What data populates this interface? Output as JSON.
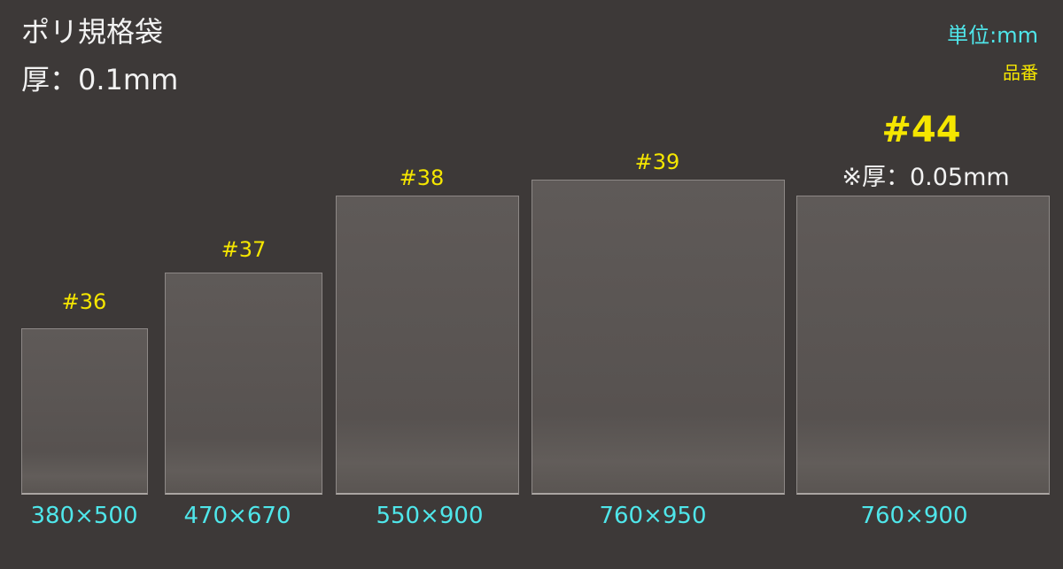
{
  "header": {
    "title": "ポリ規格袋",
    "thickness": "厚：0.1mm"
  },
  "legend": {
    "unit": "単位:mm",
    "code": "品番"
  },
  "bags": [
    {
      "code": "#36",
      "size": "380×500"
    },
    {
      "code": "#37",
      "size": "470×670"
    },
    {
      "code": "#38",
      "size": "550×900"
    },
    {
      "code": "#39",
      "size": "760×950"
    },
    {
      "code": "#44",
      "size": "760×900",
      "note": "※厚：0.05mm"
    }
  ],
  "colors": {
    "background": "#3d3938",
    "size_text": "#4fe6ea",
    "code_text": "#f5e600",
    "bag_fill": "#5a5553"
  }
}
